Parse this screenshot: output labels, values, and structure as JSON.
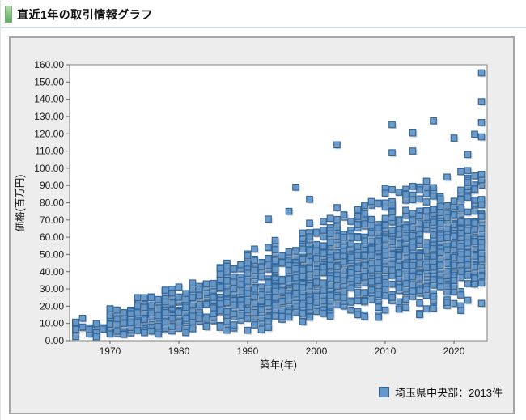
{
  "header": {
    "title": "直近1年の取引情報グラフ",
    "accent_color": "#8CC48A"
  },
  "chart_data": {
    "type": "scatter",
    "title": "",
    "xlabel": "築年(年)",
    "ylabel": "価格(百万円)",
    "xlim": [
      1964.12,
      2024.82
    ],
    "ylim": [
      0,
      160
    ],
    "x_tick_years": [
      1970,
      1980,
      1990,
      2000,
      2010,
      2020
    ],
    "x_tick_labels": [
      "1970",
      "1980",
      "1990",
      "2000",
      "2010",
      "2020"
    ],
    "y_tick_labels": [
      "160.00",
      "150.00",
      "140.00",
      "130.00",
      "120.00",
      "110.00",
      "100.00",
      "90.00",
      "80.00",
      "70.00",
      "60.00",
      "50.00",
      "40.00",
      "30.00",
      "20.00",
      "10.00",
      "0.00"
    ],
    "grid": false,
    "legend": {
      "position": "bottom-right",
      "label": "埼玉県中央部：2013件",
      "marker_fill": "#6496C8",
      "marker_stroke": "#336699"
    },
    "seed": 20130,
    "series": [
      {
        "name": "埼玉県中央部",
        "count": 2013,
        "marker": {
          "shape": "square",
          "size": 7.5,
          "fill": "#6496C8",
          "stroke": "#336699",
          "fill_opacity": 0.92,
          "shadow": "#B8B8B8"
        },
        "bands_format": [
          "year_start",
          "year_end",
          "n_points",
          "price_min",
          "price_mode",
          "price_max"
        ],
        "bands": [
          [
            1965,
            1969,
            22,
            2,
            6,
            14
          ],
          [
            1970,
            1973,
            108,
            3,
            8,
            20
          ],
          [
            1974,
            1977,
            110,
            3,
            10,
            26
          ],
          [
            1978,
            1981,
            112,
            4,
            13,
            32
          ],
          [
            1982,
            1985,
            96,
            5,
            16,
            38
          ],
          [
            1986,
            1989,
            122,
            5,
            20,
            46
          ],
          [
            1990,
            1993,
            142,
            5,
            24,
            55
          ],
          [
            1994,
            1997,
            146,
            8,
            28,
            62
          ],
          [
            1998,
            2001,
            158,
            10,
            32,
            72
          ],
          [
            2002,
            2005,
            168,
            10,
            35,
            82
          ],
          [
            2006,
            2009,
            170,
            10,
            38,
            90
          ],
          [
            2010,
            2013,
            178,
            12,
            42,
            95
          ],
          [
            2014,
            2017,
            180,
            14,
            46,
            98
          ],
          [
            2018,
            2021,
            176,
            15,
            48,
            100
          ],
          [
            2022,
            2024,
            108,
            18,
            50,
            106
          ]
        ],
        "outliers": [
          [
            1993,
            70.5
          ],
          [
            1996,
            75
          ],
          [
            1997,
            89
          ],
          [
            1999,
            82
          ],
          [
            2003,
            113.6
          ],
          [
            2011,
            125.3
          ],
          [
            2011,
            109
          ],
          [
            2014,
            120.5
          ],
          [
            2014,
            110
          ],
          [
            2017,
            127.5
          ],
          [
            2020,
            117.5
          ],
          [
            2022,
            108
          ],
          [
            2023,
            119.7
          ],
          [
            2024,
            155.3
          ],
          [
            2024,
            138.6
          ],
          [
            2024,
            126.5
          ],
          [
            2024,
            118.2
          ]
        ]
      }
    ]
  }
}
